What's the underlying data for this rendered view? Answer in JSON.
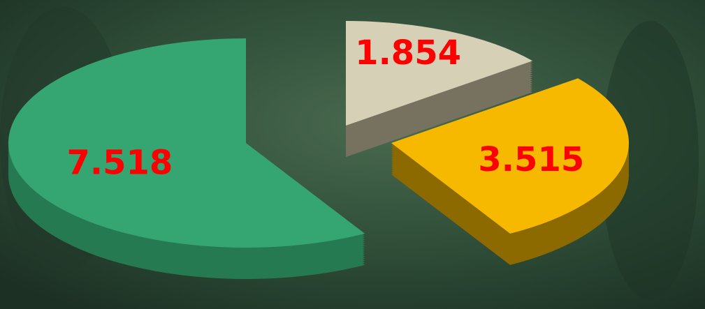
{
  "chart_data": {
    "type": "pie3d",
    "categories": [
      null,
      null,
      null
    ],
    "values": [
      7.518,
      1.854,
      3.515
    ],
    "colors": [
      "#35a672",
      "#d6d0b6",
      "#f7b900"
    ],
    "side_colors": [
      "#267a52",
      "#77725f",
      "#8c6a00"
    ],
    "label_color": "#ff0000"
  }
}
